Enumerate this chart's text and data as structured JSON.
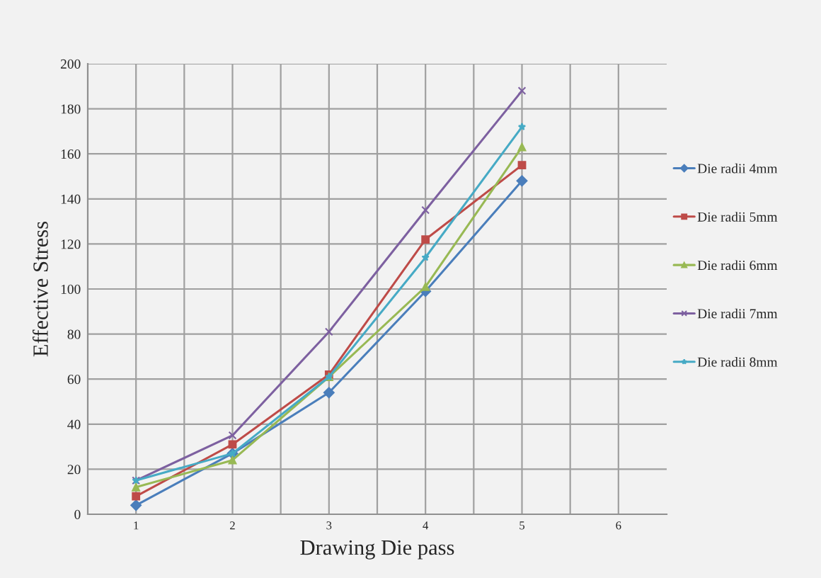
{
  "chart_data": {
    "type": "line",
    "xlabel": "Drawing Die pass",
    "ylabel": "Effective Stress",
    "x": [
      1,
      2,
      3,
      4,
      5
    ],
    "xlim": [
      0.5,
      6.5
    ],
    "xticks": [
      1,
      {
        "value": 1.5,
        "label": null
      },
      2,
      {
        "value": 2.5,
        "label": null
      },
      3,
      {
        "value": 3.5,
        "label": null
      },
      4,
      {
        "value": 4.5,
        "label": null
      },
      5,
      {
        "value": 5.5,
        "label": null
      },
      6
    ],
    "ylim": [
      0,
      200
    ],
    "yticks": [
      0,
      20,
      40,
      60,
      80,
      100,
      120,
      140,
      160,
      180,
      200
    ],
    "grid": true,
    "legend": "right",
    "line_style": "solid",
    "series": [
      {
        "name": "Die radii 4mm",
        "color": "#4a7ebb",
        "marker": "diamond",
        "values": [
          4,
          27,
          54,
          99,
          148
        ]
      },
      {
        "name": "Die radii 5mm",
        "color": "#be4b48",
        "marker": "square",
        "values": [
          8,
          31,
          62,
          122,
          155
        ]
      },
      {
        "name": "Die radii 6mm",
        "color": "#98b954",
        "marker": "triangle",
        "values": [
          12,
          24,
          61,
          101,
          163
        ]
      },
      {
        "name": "Die radii 7mm",
        "color": "#7d60a0",
        "marker": "cross",
        "values": [
          15,
          35,
          81,
          135,
          188
        ]
      },
      {
        "name": "Die radii 8mm",
        "color": "#46aac5",
        "marker": "star",
        "values": [
          15,
          27,
          61,
          114,
          172
        ]
      }
    ]
  }
}
